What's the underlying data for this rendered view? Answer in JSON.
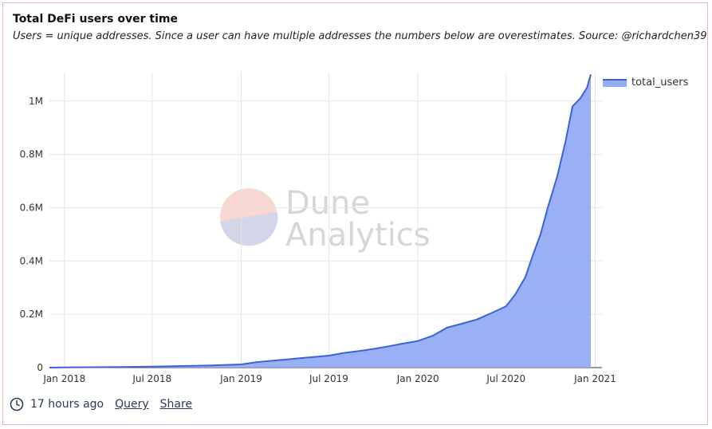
{
  "header": {
    "title": "Total DeFi users over time",
    "subtitle": "Users = unique addresses. Since a user can have multiple addresses the numbers below are overestimates. Source: @richardchen39"
  },
  "watermark": {
    "line1": "Dune",
    "line2": "Analytics"
  },
  "footer": {
    "time_ago": "17 hours ago",
    "query_label": "Query",
    "share_label": "Share"
  },
  "colors": {
    "line": "#3b63d6",
    "fill": "#94acf5",
    "grid": "#e6e6e6"
  },
  "chart_data": {
    "type": "area",
    "series": [
      {
        "name": "total_users",
        "x": [
          "2017-12-01",
          "2018-01-01",
          "2018-03-01",
          "2018-05-01",
          "2018-07-01",
          "2018-09-01",
          "2018-11-01",
          "2019-01-01",
          "2019-02-01",
          "2019-03-01",
          "2019-04-01",
          "2019-05-01",
          "2019-06-01",
          "2019-07-01",
          "2019-08-01",
          "2019-09-01",
          "2019-10-01",
          "2019-11-01",
          "2019-12-01",
          "2020-01-01",
          "2020-02-01",
          "2020-03-01",
          "2020-04-01",
          "2020-05-01",
          "2020-06-01",
          "2020-07-01",
          "2020-07-20",
          "2020-08-10",
          "2020-08-25",
          "2020-09-10",
          "2020-09-25",
          "2020-10-15",
          "2020-11-01",
          "2020-11-15",
          "2020-12-01",
          "2020-12-15",
          "2020-12-23"
        ],
        "values": [
          0,
          500,
          1500,
          2500,
          4000,
          6000,
          8000,
          12000,
          20000,
          25000,
          30000,
          35000,
          40000,
          45000,
          55000,
          62000,
          70000,
          80000,
          90000,
          100000,
          120000,
          150000,
          165000,
          180000,
          205000,
          230000,
          275000,
          340000,
          420000,
          500000,
          600000,
          720000,
          850000,
          980000,
          1010000,
          1050000,
          1100000
        ]
      }
    ],
    "x_ticks": [
      "Jan 2018",
      "Jul 2018",
      "Jan 2019",
      "Jul 2019",
      "Jan 2020",
      "Jul 2020",
      "Jan 2021"
    ],
    "x_tick_dates": [
      "2018-01-01",
      "2018-07-01",
      "2019-01-01",
      "2019-07-01",
      "2020-01-01",
      "2020-07-01",
      "2021-01-01"
    ],
    "y_ticks": [
      "0",
      "0.2M",
      "0.4M",
      "0.6M",
      "0.8M",
      "1M"
    ],
    "y_tick_values": [
      0,
      200000,
      400000,
      600000,
      800000,
      1000000
    ],
    "xlim": [
      "2017-12-01",
      "2021-01-15"
    ],
    "ylim": [
      0,
      1110000
    ],
    "grid": true,
    "legend_placement": "top-right"
  }
}
